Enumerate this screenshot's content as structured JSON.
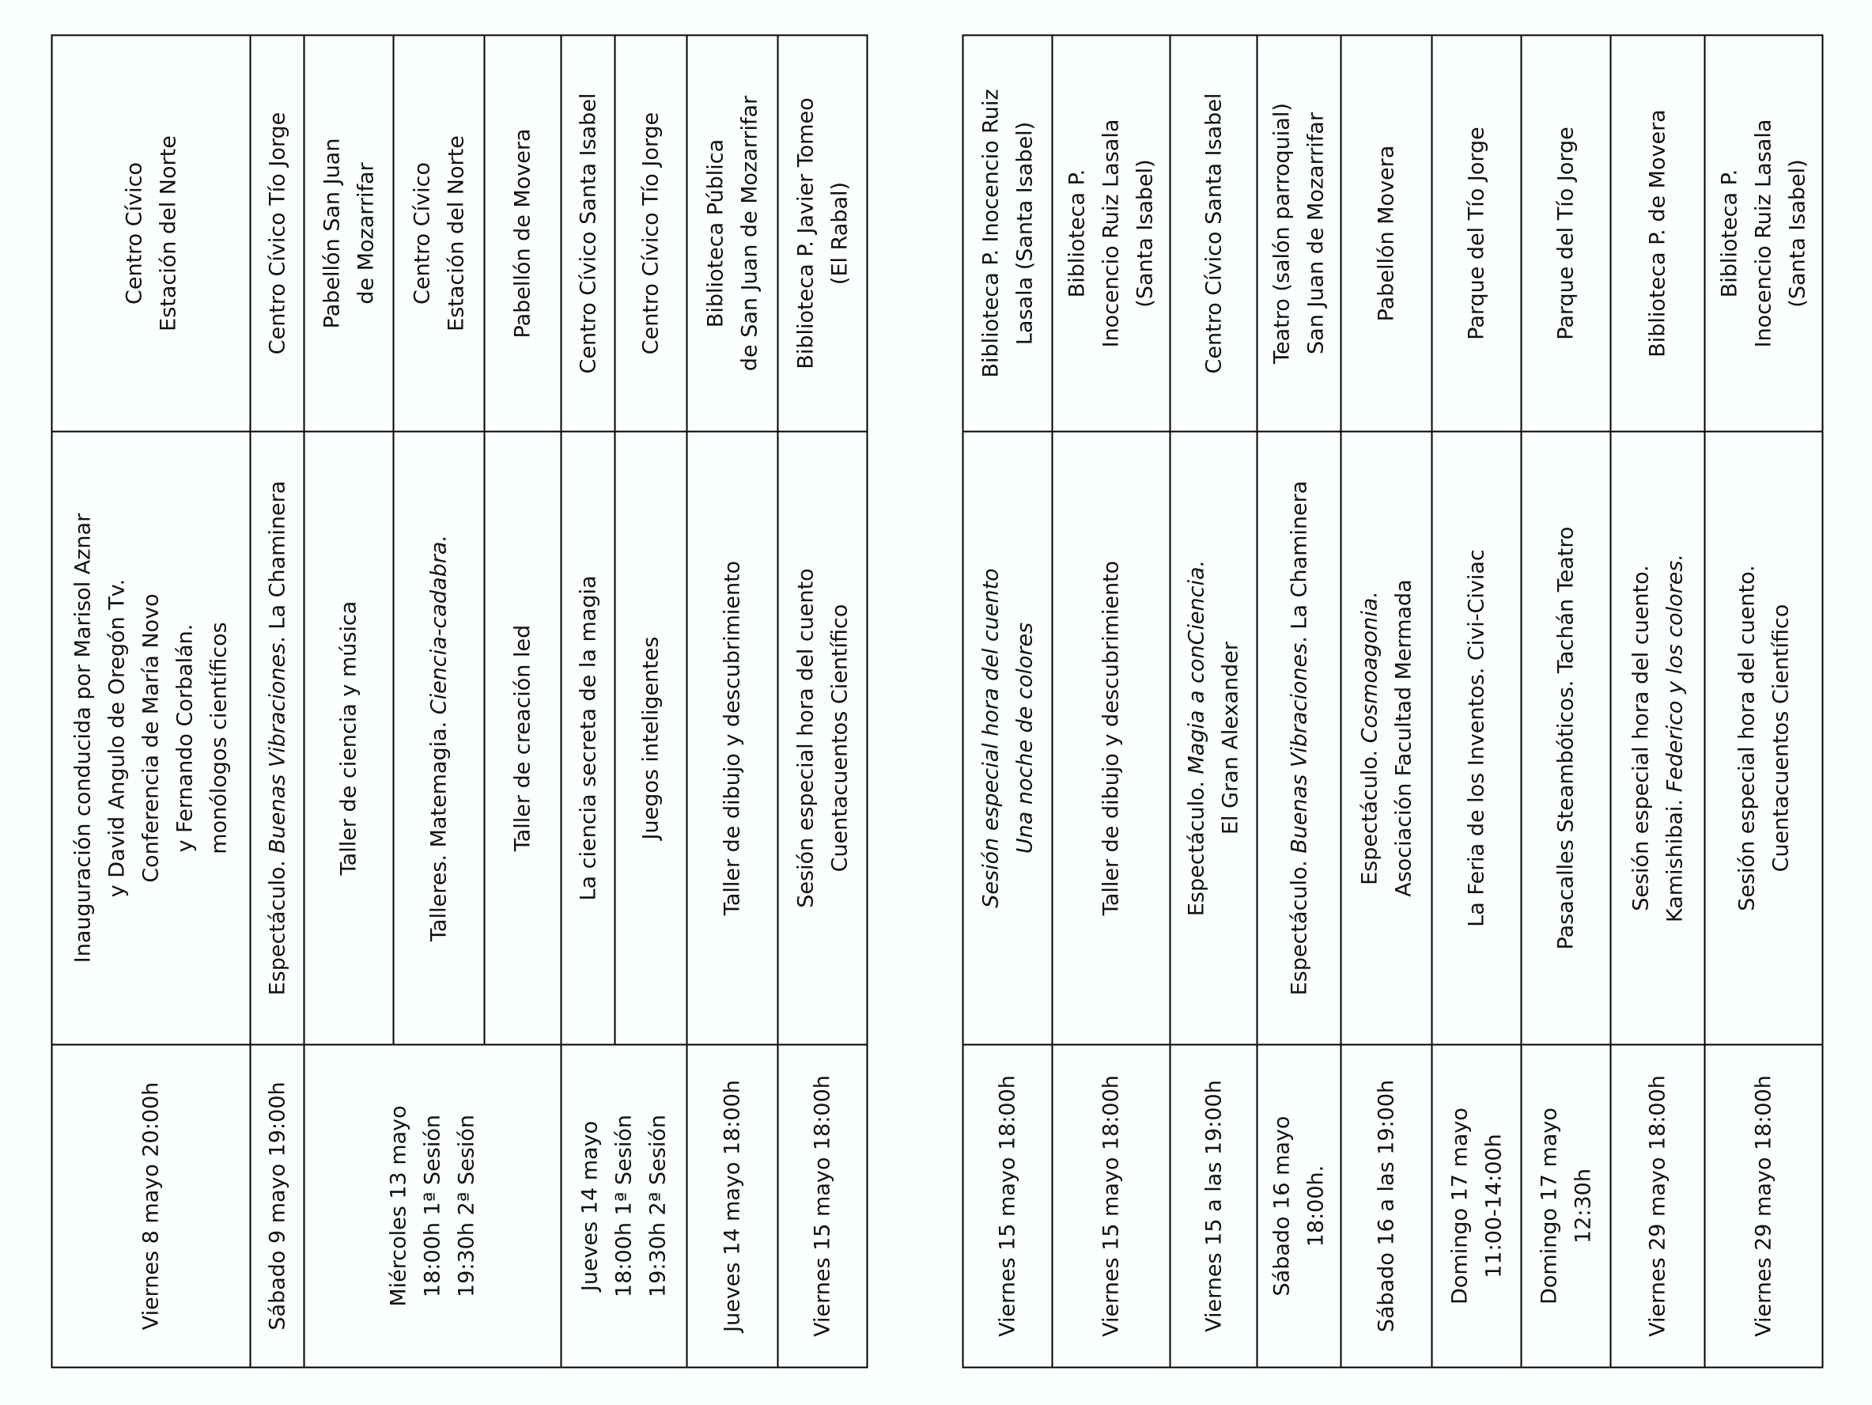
{
  "tables": [
    {
      "rows": [
        {
          "date": [
            [
              {
                "t": "Viernes 8 mayo 20:00h"
              }
            ]
          ],
          "activity": [
            [
              {
                "t": "Inauguración conducida por Marisol Aznar"
              }
            ],
            [
              {
                "t": "y David Angulo de Oregón Tv."
              }
            ],
            [
              {
                "t": "Conferencia de María Novo"
              }
            ],
            [
              {
                "t": "y Fernando Corbalán."
              }
            ],
            [
              {
                "t": "monólogos científicos"
              }
            ]
          ],
          "place": [
            [
              {
                "t": "Centro Cívico"
              }
            ],
            [
              {
                "t": "Estación del Norte"
              }
            ]
          ]
        },
        {
          "date": [
            [
              {
                "t": "Sábado 9 mayo 19:00h"
              }
            ]
          ],
          "activity": [
            [
              {
                "t": "Espectáculo. "
              },
              {
                "t": "Buenas Vibraciones",
                "i": true
              },
              {
                "t": ". La Chaminera"
              }
            ]
          ],
          "place": [
            [
              {
                "t": "Centro Cívico Tío Jorge"
              }
            ]
          ]
        },
        {
          "date": [
            [
              {
                "t": "Miércoles 13 mayo"
              }
            ],
            [
              {
                "t": "18:00h 1ª Sesión"
              }
            ],
            [
              {
                "t": "19:30h 2ª Sesión"
              }
            ]
          ],
          "date_rowspan": 3,
          "activity": [
            [
              {
                "t": "Taller de ciencia y música"
              }
            ]
          ],
          "place": [
            [
              {
                "t": "Pabellón San Juan"
              }
            ],
            [
              {
                "t": "de Mozarrifar"
              }
            ]
          ]
        },
        {
          "activity": [
            [
              {
                "t": "Talleres. Matemagia. "
              },
              {
                "t": "Ciencia-cadabra.",
                "i": true
              }
            ]
          ],
          "place": [
            [
              {
                "t": "Centro Cívico"
              }
            ],
            [
              {
                "t": "Estación del Norte"
              }
            ]
          ]
        },
        {
          "activity": [
            [
              {
                "t": "Taller de creación led"
              }
            ]
          ],
          "place": [
            [
              {
                "t": "Pabellón de Movera"
              }
            ]
          ]
        },
        {
          "date": [
            [
              {
                "t": "Jueves 14 mayo"
              }
            ],
            [
              {
                "t": "18:00h 1ª Sesión"
              }
            ],
            [
              {
                "t": "19:30h 2ª Sesión"
              }
            ]
          ],
          "date_rowspan": 2,
          "activity": [
            [
              {
                "t": "La ciencia secreta de la magia"
              }
            ]
          ],
          "place": [
            [
              {
                "t": "Centro Cívico Santa Isabel"
              }
            ]
          ]
        },
        {
          "activity": [
            [
              {
                "t": "Juegos inteligentes"
              }
            ]
          ],
          "place": [
            [
              {
                "t": "Centro Cívico Tío Jorge"
              }
            ]
          ]
        },
        {
          "date": [
            [
              {
                "t": "Jueves 14 mayo 18:00h"
              }
            ]
          ],
          "activity": [
            [
              {
                "t": "Taller de dibujo y descubrimiento"
              }
            ]
          ],
          "place": [
            [
              {
                "t": "Biblioteca Pública"
              }
            ],
            [
              {
                "t": "de San Juan de Mozarrifar"
              }
            ]
          ]
        },
        {
          "date": [
            [
              {
                "t": "Viernes 15 mayo 18:00h"
              }
            ]
          ],
          "activity": [
            [
              {
                "t": "Sesión especial hora del cuento"
              }
            ],
            [
              {
                "t": "Cuentacuentos Científico"
              }
            ]
          ],
          "place": [
            [
              {
                "t": "Biblioteca P. Javier Tomeo"
              }
            ],
            [
              {
                "t": "(El Rabal)"
              }
            ]
          ]
        }
      ]
    },
    {
      "rows": [
        {
          "date": [
            [
              {
                "t": "Viernes 15 mayo 18:00h"
              }
            ]
          ],
          "activity": [
            [
              {
                "t": "Sesión especial hora del cuento",
                "i": true
              }
            ],
            [
              {
                "t": "Una noche de colores",
                "i": true
              }
            ]
          ],
          "place": [
            [
              {
                "t": "Biblioteca P. Inocencio Ruiz"
              }
            ],
            [
              {
                "t": "Lasala (Santa Isabel)"
              }
            ]
          ]
        },
        {
          "date": [
            [
              {
                "t": "Viernes 15 mayo 18:00h"
              }
            ]
          ],
          "activity": [
            [
              {
                "t": "Taller de dibujo y descubrimiento"
              }
            ]
          ],
          "place": [
            [
              {
                "t": "Biblioteca P."
              }
            ],
            [
              {
                "t": "Inocencio Ruiz Lasala"
              }
            ],
            [
              {
                "t": "(Santa Isabel)"
              }
            ]
          ]
        },
        {
          "date": [
            [
              {
                "t": "Viernes 15 a las 19:00h"
              }
            ]
          ],
          "activity": [
            [
              {
                "t": "Espectáculo. "
              },
              {
                "t": "Magia a conCiencia.",
                "i": true
              }
            ],
            [
              {
                "t": "El Gran Alexander"
              }
            ]
          ],
          "place": [
            [
              {
                "t": "Centro Cívico Santa Isabel"
              }
            ]
          ]
        },
        {
          "date": [
            [
              {
                "t": "Sábado 16 mayo"
              }
            ],
            [
              {
                "t": "18:00h."
              }
            ]
          ],
          "activity": [
            [
              {
                "t": "Espectáculo. "
              },
              {
                "t": "Buenas Vibraciones",
                "i": true
              },
              {
                "t": ". La Chaminera"
              }
            ]
          ],
          "place": [
            [
              {
                "t": "Teatro (salón parroquial)"
              }
            ],
            [
              {
                "t": "San Juan de Mozarrifar"
              }
            ]
          ]
        },
        {
          "date": [
            [
              {
                "t": "Sábado 16 a las 19:00h"
              }
            ]
          ],
          "activity": [
            [
              {
                "t": "Espectáculo. "
              },
              {
                "t": "Cosmoagonia.",
                "i": true
              }
            ],
            [
              {
                "t": "Asociación Facultad Mermada"
              }
            ]
          ],
          "place": [
            [
              {
                "t": "Pabellón Movera"
              }
            ]
          ]
        },
        {
          "date": [
            [
              {
                "t": "Domingo 17 mayo"
              }
            ],
            [
              {
                "t": "11:00-14:00h"
              }
            ]
          ],
          "activity": [
            [
              {
                "t": "La Feria de los Inventos. Civi-Civiac"
              }
            ]
          ],
          "place": [
            [
              {
                "t": "Parque del Tío Jorge"
              }
            ]
          ]
        },
        {
          "date": [
            [
              {
                "t": "Domingo 17 mayo"
              }
            ],
            [
              {
                "t": "12:30h"
              }
            ]
          ],
          "activity": [
            [
              {
                "t": "Pasacalles Steambóticos. Tachán Teatro"
              }
            ]
          ],
          "place": [
            [
              {
                "t": "Parque del Tío Jorge"
              }
            ]
          ]
        },
        {
          "date": [
            [
              {
                "t": "Viernes 29 mayo 18:00h"
              }
            ]
          ],
          "activity": [
            [
              {
                "t": "Sesión especial hora del cuento."
              }
            ],
            [
              {
                "t": "Kamishibai. "
              },
              {
                "t": "Federico y los colores.",
                "i": true
              }
            ]
          ],
          "place": [
            [
              {
                "t": "Biblioteca P. de Movera"
              }
            ]
          ]
        },
        {
          "date": [
            [
              {
                "t": "Viernes 29 mayo 18:00h"
              }
            ]
          ],
          "activity": [
            [
              {
                "t": "Sesión especial hora del cuento."
              }
            ],
            [
              {
                "t": "Cuentacuentos Científico"
              }
            ]
          ],
          "place": [
            [
              {
                "t": "Biblioteca P."
              }
            ],
            [
              {
                "t": "Inocencio Ruiz Lasala"
              }
            ],
            [
              {
                "t": "(Santa Isabel)"
              }
            ]
          ]
        }
      ]
    }
  ]
}
